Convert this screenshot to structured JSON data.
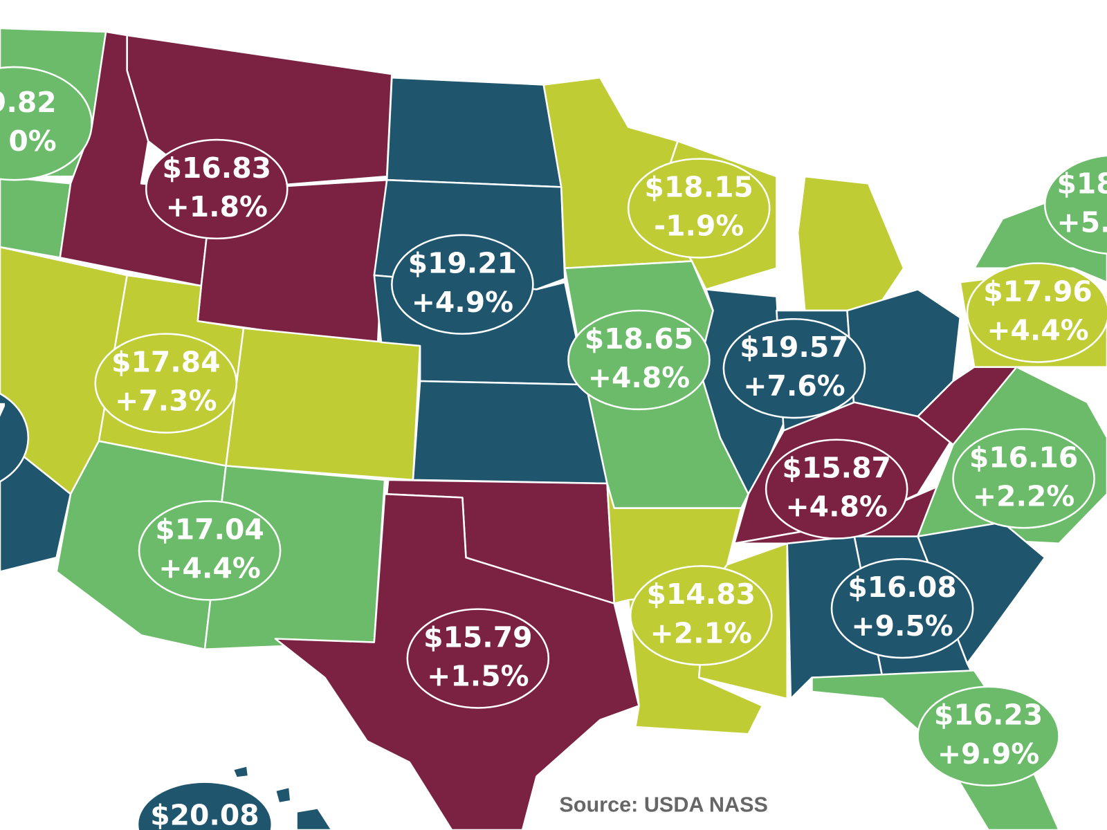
{
  "regions": [
    {
      "price": "9.82",
      "change": "0%"
    },
    {
      "price": "$16.83",
      "change": "+1.8%"
    },
    {
      "price": "$19.21",
      "change": "+4.9%"
    },
    {
      "price": "$18.15",
      "change": "-1.9%"
    },
    {
      "price": "$18",
      "change": "+5."
    },
    {
      "price": "$17.96",
      "change": "+4.4%"
    },
    {
      "price": "$17.84",
      "change": "+7.3%"
    },
    {
      "price": "$18.65",
      "change": "+4.8%"
    },
    {
      "price": "$19.57",
      "change": "+7.6%"
    },
    {
      "price": "7"
    },
    {
      "price": "$15.87",
      "change": "+4.8%"
    },
    {
      "price": "$16.16",
      "change": "+2.2%"
    },
    {
      "price": "$17.04",
      "change": "+4.4%"
    },
    {
      "price": "$14.83",
      "change": "+2.1%"
    },
    {
      "price": "$16.08",
      "change": "+9.5%"
    },
    {
      "price": "$15.79",
      "change": "+1.5%"
    },
    {
      "price": "$16.23",
      "change": "+9.9%"
    },
    {
      "price": "$20.08"
    }
  ],
  "source": "Source: USDA NASS"
}
